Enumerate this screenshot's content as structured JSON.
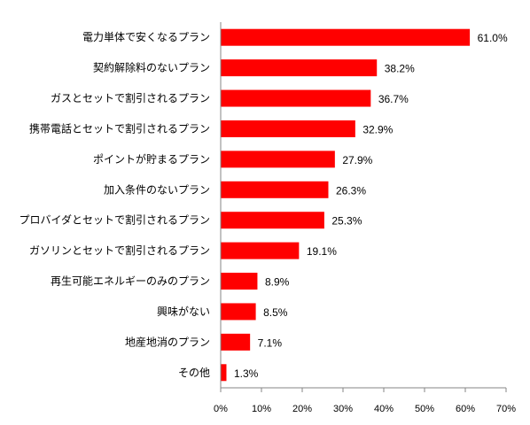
{
  "chart_data": {
    "type": "bar",
    "orientation": "horizontal",
    "categories": [
      "電力単体で安くなるプラン",
      "契約解除料のないプラン",
      "ガスとセットで割引されるプラン",
      "携帯電話とセットで割引されるプラン",
      "ポイントが貯まるプラン",
      "加入条件のないプラン",
      "プロバイダとセットで割引されるプラン",
      "ガソリンとセットで割引されるプラン",
      "再生可能エネルギーのみのプラン",
      "興味がない",
      "地産地消のプラン",
      "その他"
    ],
    "values": [
      61.0,
      38.2,
      36.7,
      32.9,
      27.9,
      26.3,
      25.3,
      19.1,
      8.9,
      8.5,
      7.1,
      1.3
    ],
    "value_labels": [
      "61.0%",
      "38.2%",
      "36.7%",
      "32.9%",
      "27.9%",
      "26.3%",
      "25.3%",
      "19.1%",
      "8.9%",
      "8.5%",
      "7.1%",
      "1.3%"
    ],
    "xticks": [
      "0%",
      "10%",
      "20%",
      "30%",
      "40%",
      "50%",
      "60%",
      "70%"
    ],
    "xlim": [
      0,
      70
    ],
    "bar_color": "#ff0000",
    "grid": false,
    "legend": "none"
  }
}
